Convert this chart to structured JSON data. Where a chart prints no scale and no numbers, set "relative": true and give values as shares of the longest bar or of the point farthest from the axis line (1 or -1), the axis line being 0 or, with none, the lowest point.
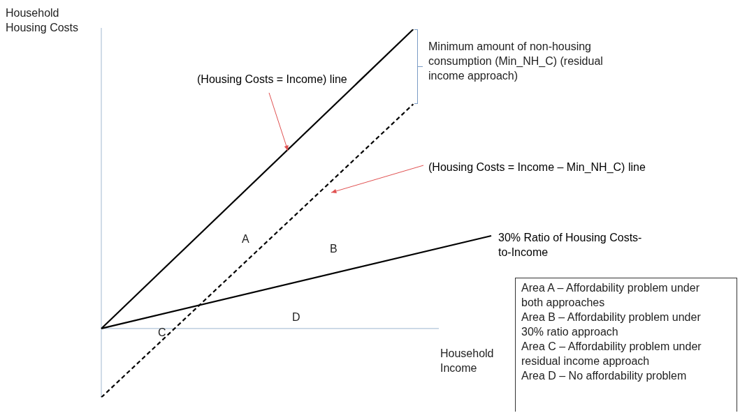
{
  "chart_data": {
    "type": "line",
    "relative": true,
    "xlabel": "Household Income",
    "ylabel": "Household Housing Costs",
    "categories": [
      null,
      null,
      null,
      null,
      null,
      null,
      null,
      null,
      null,
      null,
      null,
      null,
      null,
      null,
      null,
      null,
      null,
      null,
      null,
      null,
      null,
      null,
      null,
      null,
      null,
      null
    ],
    "series": [
      {
        "name": "(Housing Costs = Income) line",
        "color": "#000000",
        "line_style": "solid",
        "values": [
          0,
          null,
          null,
          null,
          null,
          null,
          null,
          null,
          null,
          null,
          null,
          null,
          null,
          null,
          null,
          null,
          null,
          null,
          null,
          null,
          1,
          null,
          null,
          null,
          null,
          null
        ]
      },
      {
        "name": "(Housing Costs = Income – Min_NH_C) line",
        "color": "#000000",
        "line_style": "dashed",
        "values": [
          -0.23,
          null,
          null,
          null,
          null,
          null,
          null,
          null,
          null,
          null,
          null,
          null,
          null,
          null,
          null,
          null,
          null,
          null,
          null,
          null,
          0.75,
          null,
          null,
          null,
          null,
          null
        ]
      },
      {
        "name": "30% Ratio of Housing Costs-to-Income",
        "color": "#000000",
        "line_style": "solid",
        "values": [
          0,
          null,
          null,
          null,
          null,
          null,
          null,
          null,
          null,
          null,
          null,
          null,
          null,
          null,
          null,
          null,
          null,
          null,
          null,
          null,
          null,
          null,
          null,
          null,
          null,
          0.31
        ]
      }
    ],
    "annotations": [
      "Minimum amount of non-housing consumption (Min_NH_C) (residual income approach)",
      "A",
      "B",
      "C",
      "D",
      "Area A – Affordability problem under both approaches",
      "Area B – Affordability problem under 30% ratio approach",
      "Area C – Affordability problem under residual income approach",
      "Area D – No affordability problem"
    ],
    "marker": "none",
    "grid": false,
    "legend": false
  }
}
